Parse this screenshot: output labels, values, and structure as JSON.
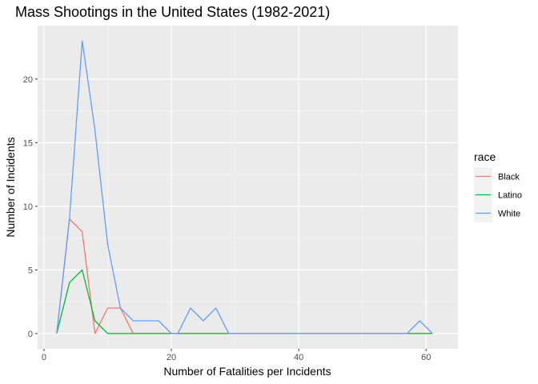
{
  "chart_data": {
    "type": "line",
    "title": "Mass Shootings in the United States (1982-2021)",
    "xlabel": "Number of Fatalities per Incidents",
    "ylabel": "Number of Incidents",
    "xlim": [
      -1,
      65
    ],
    "ylim": [
      -1.2,
      24.2
    ],
    "x_ticks": [
      0,
      20,
      40,
      60
    ],
    "y_ticks": [
      0,
      5,
      10,
      15,
      20
    ],
    "x_tick_labels": [
      "0",
      "20",
      "40",
      "60"
    ],
    "y_tick_labels": [
      "0",
      "5",
      "10",
      "15",
      "20"
    ],
    "legend": {
      "title": "race",
      "placement": "right"
    },
    "series": [
      {
        "name": "Black",
        "color": "#F8766D",
        "points": [
          [
            2,
            0
          ],
          [
            4,
            9
          ],
          [
            6,
            8
          ],
          [
            8,
            0
          ],
          [
            10,
            2
          ],
          [
            12,
            2
          ],
          [
            14,
            0
          ],
          [
            61,
            0
          ]
        ]
      },
      {
        "name": "Latino",
        "color": "#00BA38",
        "points": [
          [
            2,
            0
          ],
          [
            4,
            4
          ],
          [
            6,
            5
          ],
          [
            8,
            1
          ],
          [
            10,
            0
          ],
          [
            61,
            0
          ]
        ]
      },
      {
        "name": "White",
        "color": "#619CFF",
        "points": [
          [
            2,
            0
          ],
          [
            4,
            9
          ],
          [
            6,
            23
          ],
          [
            8,
            16
          ],
          [
            10,
            7
          ],
          [
            12,
            2
          ],
          [
            14,
            1
          ],
          [
            16,
            1
          ],
          [
            18,
            1
          ],
          [
            20,
            0
          ],
          [
            21,
            0
          ],
          [
            23,
            2
          ],
          [
            25,
            1
          ],
          [
            27,
            2
          ],
          [
            29,
            0
          ],
          [
            57,
            0
          ],
          [
            59,
            1
          ],
          [
            61,
            0
          ]
        ]
      }
    ],
    "grid": true
  }
}
